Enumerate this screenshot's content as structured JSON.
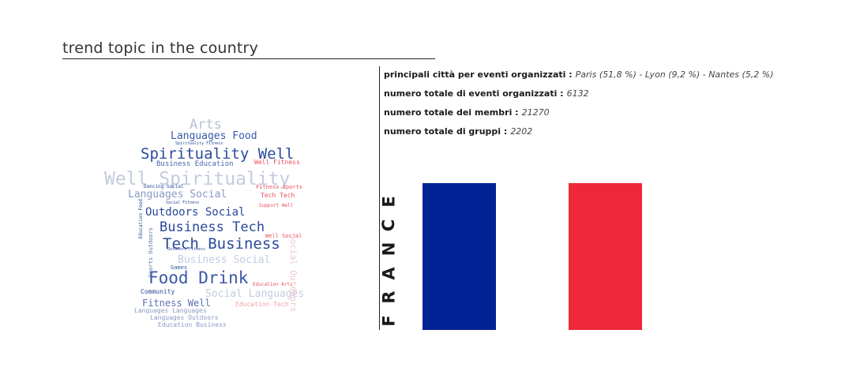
{
  "header": {
    "title": "trend topic in the country"
  },
  "stats": [
    {
      "label": "principali città per eventi organizzati :",
      "value": "Paris (51,8 %) - Lyon (9,2 %) - Nantes (5,2 %)"
    },
    {
      "label": "numero totale di eventi organizzati :",
      "value": "6132"
    },
    {
      "label": "numero totale dei membri :",
      "value": "21270"
    },
    {
      "label": "numero totale di gruppi :",
      "value": "2202"
    }
  ],
  "country": {
    "letters": [
      "F",
      "R",
      "A",
      "N",
      "C",
      "E"
    ]
  },
  "flag": {
    "colors": [
      "#002395",
      "#FFFFFF",
      "#ED2939"
    ]
  },
  "colors": {
    "cloud_dark": "#2a4a9a",
    "cloud_light": "#c0c8dc",
    "cloud_red": "#e8505a",
    "cloud_pink": "#f0b8bc"
  },
  "wordcloud": {
    "words": [
      "Arts",
      "Languages Food",
      "Spirituality Well",
      "Business Education",
      "Well Spirituality",
      "Languages Social",
      "Outdoors Social",
      "Business Tech",
      "Tech Business",
      "Business Social",
      "Food Drink",
      "Social Languages",
      "Fitness Well",
      "Languages Languages",
      "Languages Outdoors",
      "Education Business",
      "Community",
      "Games",
      "Well Fitness",
      "Fitness Sports",
      "Tech Tech",
      "Support Well",
      "Well Social",
      "Dancing Social",
      "Social Fitness",
      "Education Tech",
      "Spirituality Fitness",
      "Outdoors Fitness",
      "Education Food",
      "Sports Outdoors",
      "Education Arts",
      "Social Outdoors"
    ]
  }
}
